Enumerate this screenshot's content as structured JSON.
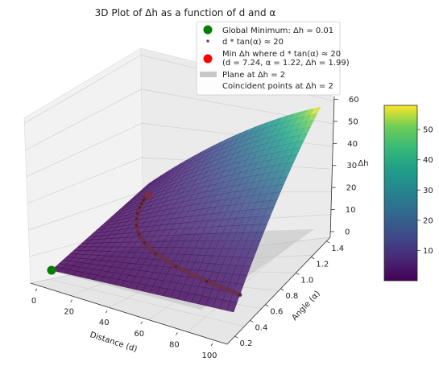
{
  "chart_data": {
    "type": "surface3d",
    "title": "3D Plot of Δh as a function of d and α",
    "xlabel": "Distance (d)",
    "ylabel": "Angle (α)",
    "zlabel": "Δh",
    "x_ticks": [
      "0",
      "20",
      "40",
      "60",
      "80",
      "100"
    ],
    "y_ticks": [
      "0.2",
      "0.4",
      "0.6",
      "0.8",
      "1.0",
      "1.2",
      "1.4"
    ],
    "z_ticks": [
      "0",
      "10",
      "20",
      "30",
      "40",
      "50",
      "60"
    ],
    "xlim": [
      0,
      100
    ],
    "ylim": [
      0.1,
      1.45
    ],
    "zlim": [
      0,
      62
    ],
    "colormap": "viridis",
    "colorbar": {
      "ticks": [
        "10",
        "20",
        "30",
        "40",
        "50"
      ],
      "range": [
        0.01,
        58
      ]
    },
    "surface_corners": {
      "d_min_a_min": 0.01,
      "d_max_a_min": 2,
      "d_min_a_max": 2,
      "d_max_a_max": 60
    },
    "series": [
      {
        "name": "d * tan(α) ≈ 20",
        "points": [
          {
            "d": 100,
            "a": 0.197
          },
          {
            "d": 80,
            "a": 0.245
          },
          {
            "d": 60,
            "a": 0.322
          },
          {
            "d": 45,
            "a": 0.418
          },
          {
            "d": 35,
            "a": 0.519
          },
          {
            "d": 28,
            "a": 0.62
          },
          {
            "d": 22,
            "a": 0.738
          },
          {
            "d": 18,
            "a": 0.838
          },
          {
            "d": 15,
            "a": 0.927
          },
          {
            "d": 12,
            "a": 1.03
          },
          {
            "d": 10,
            "a": 1.107
          },
          {
            "d": 8.5,
            "a": 1.169
          },
          {
            "d": 7.24,
            "a": 1.22
          }
        ]
      }
    ],
    "global_min": {
      "name": "Global Minimum: Δh = 0.01",
      "d": 0,
      "a": 0.1,
      "z": 0.01
    },
    "min_marker": {
      "d": 7.24,
      "a": 1.22,
      "z": 1.99
    },
    "legend": [
      {
        "label": "Global Minimum: Δh = 0.01",
        "marker": "circle",
        "color": "#008000"
      },
      {
        "label": "d * tan(α) ≈ 20",
        "marker": "square-small",
        "color": "#6b2f4a"
      },
      {
        "label_line1": "Min Δh where d * tan(α) ≈ 20",
        "label_line2": "(d = 7.24, α = 1.22, Δh = 1.99)",
        "marker": "circle",
        "color": "#ff0000"
      },
      {
        "label": "Plane at Δh = 2",
        "marker": "patch",
        "color": "#bdbdbd"
      },
      {
        "label": "Coincident points at Δh = 2",
        "marker": "none",
        "color": "#ffffff"
      }
    ],
    "legend_position": "top-right",
    "grid": true
  }
}
